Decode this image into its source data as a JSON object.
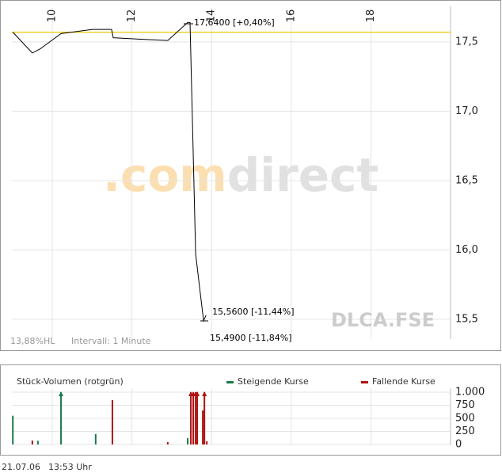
{
  "chart_data": [
    {
      "type": "line",
      "x": [
        9.01,
        9.5,
        9.7,
        10.22,
        11.01,
        11.49,
        11.53,
        12.17,
        12.9,
        13.4,
        13.46,
        13.6,
        13.8,
        13.86
      ],
      "values": [
        17.57,
        17.42,
        17.45,
        17.56,
        17.59,
        17.59,
        17.53,
        17.52,
        17.51,
        17.64,
        17.64,
        15.97,
        15.49,
        15.53
      ],
      "color": "#000000",
      "xlim": [
        9,
        20
      ],
      "xticks": [
        10,
        12,
        14,
        16,
        18
      ],
      "ylim": [
        15.363,
        17.745
      ],
      "yticks": [
        {
          "value": 15.5,
          "label": "15,5"
        },
        {
          "value": 16,
          "label": "16,0"
        },
        {
          "value": 16.5,
          "label": "16,5"
        },
        {
          "value": 17,
          "label": "17,0"
        },
        {
          "value": 17.5,
          "label": "17,5"
        }
      ],
      "grid": true,
      "reference_line": 17.57,
      "reference_color": "#f0c800",
      "annotations": [
        "17,6400 [+0,40%]",
        "15,5600 [-11,44%]",
        "15,4900 [-11,84%]",
        "13,88%HL",
        "Intervall: 1 Minute",
        "DLCA.FSE"
      ],
      "watermark": [
        ".com",
        "direct"
      ]
    },
    {
      "type": "bar",
      "title": "Stück-Volumen (rotgrün)",
      "series": [
        {
          "name": "Steigende Kurse",
          "color": "#1a7a4a",
          "x": [
            9.01,
            9.64,
            10.22,
            11.09,
            13.4
          ],
          "values": [
            550,
            70,
            1000,
            200,
            120
          ]
        },
        {
          "name": "Fallende Kurse",
          "color": "#b01010",
          "x": [
            9.5,
            11.51,
            12.9,
            13.48,
            13.54,
            13.6,
            13.64,
            13.78,
            13.82,
            13.88
          ],
          "values": [
            75,
            850,
            45,
            1000,
            1000,
            1000,
            1000,
            650,
            1000,
            60
          ]
        }
      ],
      "xlim": [
        9,
        20
      ],
      "xticks": [
        10,
        12,
        14,
        16,
        18
      ],
      "ylim": [
        0,
        1000
      ],
      "yticks": [
        0,
        250,
        500,
        750,
        {
          "value": 1000,
          "label": "1.000"
        }
      ],
      "grid": true
    }
  ],
  "footer": {
    "date": "21.07.06",
    "time": "13:53 Uhr"
  }
}
